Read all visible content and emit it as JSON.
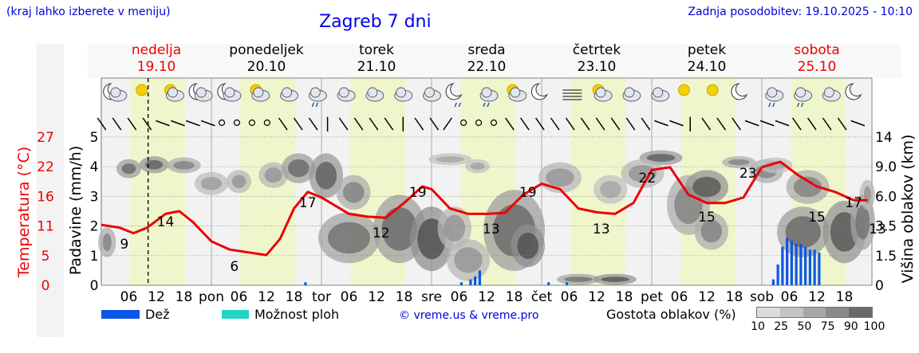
{
  "header": {
    "left_note": "(kraj lahko izberete v meniju)",
    "title": "Zagreb 7 dni",
    "updated": "Zadnja posodobitev: 19.10.2025 - 10:10"
  },
  "days": [
    {
      "name": "nedelja",
      "date": "19.10",
      "color": "#ee0000"
    },
    {
      "name": "ponedeljek",
      "date": "20.10",
      "color": "#000000"
    },
    {
      "name": "torek",
      "date": "21.10",
      "color": "#000000"
    },
    {
      "name": "sreda",
      "date": "22.10",
      "color": "#000000"
    },
    {
      "name": "četrtek",
      "date": "23.10",
      "color": "#000000"
    },
    {
      "name": "petek",
      "date": "24.10",
      "color": "#000000"
    },
    {
      "name": "sobota",
      "date": "25.10",
      "color": "#ee0000"
    }
  ],
  "legend": {
    "rain": "Dež",
    "shower": "Možnost ploh",
    "copyright": "© vreme.us & vreme.pro",
    "cloud_density": "Gostota oblakov (%)",
    "cloud_ticks": [
      "10",
      "25",
      "50",
      "75",
      "90",
      "100"
    ]
  },
  "colors": {
    "temperature": "#ee0000",
    "rain": "#0b57e8",
    "shower": "#23d4c3",
    "daylight": "#f0f6cc",
    "night": "#f2f2f2"
  },
  "chart_data": {
    "type": "line",
    "x_unit": "hours since 2025-10-19 00:00",
    "x_tick_labels": [
      "06",
      "12",
      "18",
      "pon",
      "06",
      "12",
      "18",
      "tor",
      "06",
      "12",
      "18",
      "sre",
      "06",
      "12",
      "18",
      "čet",
      "06",
      "12",
      "18",
      "pet",
      "06",
      "12",
      "18",
      "sob",
      "06",
      "12",
      "18"
    ],
    "current_time_hours": 10.2,
    "left_temperature_axis": {
      "label": "Temperatura (°C)",
      "ticks": [
        "0",
        "5",
        "11",
        "16",
        "22",
        "27"
      ],
      "range": [
        0,
        27
      ]
    },
    "left_precip_axis": {
      "label": "Padavine (mm/h)",
      "ticks": [
        "0",
        "1",
        "2",
        "3",
        "4",
        "5"
      ],
      "range": [
        0,
        5
      ]
    },
    "right_cloud_axis": {
      "label": "Višina oblakov (km)",
      "ticks": [
        "0",
        "1.5",
        "3.5",
        "6.0",
        "9.0",
        "14"
      ]
    },
    "temperature_series": {
      "name": "Temperatura (°C)",
      "x": [
        0,
        4,
        7,
        10,
        14,
        17,
        20,
        24,
        28,
        32,
        36,
        39,
        42,
        45,
        48,
        54,
        58,
        62,
        66,
        70,
        72,
        76,
        80,
        84,
        88,
        92,
        96,
        100,
        104,
        108,
        112,
        116,
        120,
        124,
        128,
        132,
        136,
        140,
        144,
        148,
        152,
        156,
        160,
        164,
        167
      ],
      "y": [
        11,
        10.5,
        9.5,
        10.5,
        13,
        13.5,
        11.5,
        8,
        6.5,
        6,
        5.5,
        8.5,
        14,
        17,
        16,
        13,
        12.5,
        12.3,
        15,
        18,
        17.5,
        14,
        13,
        13,
        13.2,
        16.5,
        18.5,
        17.5,
        14,
        13.3,
        13,
        15,
        21,
        21.5,
        16.5,
        15,
        15,
        16,
        21.5,
        22.5,
        20,
        18,
        17,
        15.5,
        15.5
      ]
    },
    "temperature_labels": [
      {
        "x": 5,
        "value": "9"
      },
      {
        "x": 14,
        "value": "14"
      },
      {
        "x": 29,
        "value": "6"
      },
      {
        "x": 45,
        "value": "17"
      },
      {
        "x": 61,
        "value": "12"
      },
      {
        "x": 69,
        "value": "19"
      },
      {
        "x": 85,
        "value": "13"
      },
      {
        "x": 93,
        "value": "19"
      },
      {
        "x": 109,
        "value": "13"
      },
      {
        "x": 119,
        "value": "22"
      },
      {
        "x": 132,
        "value": "15"
      },
      {
        "x": 141,
        "value": "23"
      },
      {
        "x": 156,
        "value": "15"
      },
      {
        "x": 164,
        "value": "17"
      },
      {
        "x": 175,
        "value": "13"
      }
    ],
    "rain_bars": [
      {
        "x": 44.5,
        "mm": 0.1
      },
      {
        "x": 78.5,
        "mm": 0.1
      },
      {
        "x": 80.5,
        "mm": 0.2
      },
      {
        "x": 81.5,
        "mm": 0.3
      },
      {
        "x": 82.5,
        "mm": 0.5
      },
      {
        "x": 97.5,
        "mm": 0.1
      },
      {
        "x": 101.5,
        "mm": 0.1
      },
      {
        "x": 146.5,
        "mm": 0.2
      },
      {
        "x": 147.5,
        "mm": 0.7
      },
      {
        "x": 148.5,
        "mm": 1.3
      },
      {
        "x": 149.5,
        "mm": 1.6
      },
      {
        "x": 150.5,
        "mm": 1.5
      },
      {
        "x": 151.5,
        "mm": 1.4
      },
      {
        "x": 152.5,
        "mm": 1.4
      },
      {
        "x": 153.5,
        "mm": 1.3
      },
      {
        "x": 154.5,
        "mm": 1.2
      },
      {
        "x": 155.5,
        "mm": 1.2
      },
      {
        "x": 156.5,
        "mm": 1.1
      }
    ],
    "cloud_blobs": [
      {
        "x0": 0,
        "x1": 2.5,
        "km0": 1.5,
        "km1": 3.3,
        "density": 60
      },
      {
        "x0": 4,
        "x1": 8,
        "km0": 8,
        "km1": 10,
        "density": 75
      },
      {
        "x0": 9,
        "x1": 14,
        "km0": 8.5,
        "km1": 10.5,
        "density": 80
      },
      {
        "x0": 15,
        "x1": 21,
        "km0": 8.5,
        "km1": 10.3,
        "density": 60
      },
      {
        "x0": 21,
        "x1": 27,
        "km0": 6.3,
        "km1": 8.3,
        "density": 45
      },
      {
        "x0": 28,
        "x1": 32,
        "km0": 6.5,
        "km1": 8.5,
        "density": 50
      },
      {
        "x0": 35,
        "x1": 40,
        "km0": 7,
        "km1": 9.5,
        "density": 50
      },
      {
        "x0": 40,
        "x1": 46,
        "km0": 7.5,
        "km1": 11,
        "density": 75
      },
      {
        "x0": 46,
        "x1": 52,
        "km0": 6,
        "km1": 11,
        "density": 80
      },
      {
        "x0": 52,
        "x1": 58,
        "km0": 5,
        "km1": 8,
        "density": 60
      },
      {
        "x0": 48,
        "x1": 60,
        "km0": 1.2,
        "km1": 4.5,
        "density": 70
      },
      {
        "x0": 60,
        "x1": 70,
        "km0": 1.2,
        "km1": 6,
        "density": 75
      },
      {
        "x0": 68,
        "x1": 76,
        "km0": 0.8,
        "km1": 5,
        "density": 90
      },
      {
        "x0": 74,
        "x1": 80,
        "km0": 2,
        "km1": 5,
        "density": 50
      },
      {
        "x0": 72,
        "x1": 80,
        "km0": 9.5,
        "km1": 11,
        "density": 40
      },
      {
        "x0": 80,
        "x1": 84,
        "km0": 8.5,
        "km1": 10,
        "density": 40
      },
      {
        "x0": 76,
        "x1": 84,
        "km0": 0.3,
        "km1": 2.5,
        "density": 50
      },
      {
        "x0": 84,
        "x1": 96,
        "km0": 0.8,
        "km1": 6.5,
        "density": 75
      },
      {
        "x0": 90,
        "x1": 96,
        "km0": 1,
        "km1": 3.5,
        "density": 90
      },
      {
        "x0": 96,
        "x1": 104,
        "km0": 6.5,
        "km1": 9.5,
        "density": 50
      },
      {
        "x0": 100,
        "x1": 108,
        "km0": 0.1,
        "km1": 0.5,
        "density": 70
      },
      {
        "x0": 108,
        "x1": 116,
        "km0": 0.1,
        "km1": 0.5,
        "density": 85
      },
      {
        "x0": 108,
        "x1": 114,
        "km0": 5.5,
        "km1": 8,
        "density": 40
      },
      {
        "x0": 118,
        "x1": 126,
        "km0": 9.5,
        "km1": 11.5,
        "density": 80
      },
      {
        "x0": 114,
        "x1": 122,
        "km0": 7,
        "km1": 10,
        "density": 50
      },
      {
        "x0": 124,
        "x1": 132,
        "km0": 3,
        "km1": 8,
        "density": 60
      },
      {
        "x0": 128,
        "x1": 136,
        "km0": 5.5,
        "km1": 8.5,
        "density": 85
      },
      {
        "x0": 130,
        "x1": 136,
        "km0": 2,
        "km1": 4.5,
        "density": 60
      },
      {
        "x0": 136,
        "x1": 142,
        "km0": 9,
        "km1": 10.5,
        "density": 60
      },
      {
        "x0": 142,
        "x1": 148,
        "km0": 7.5,
        "km1": 10,
        "density": 60
      },
      {
        "x0": 144,
        "x1": 150,
        "km0": 8.5,
        "km1": 10.3,
        "density": 40
      },
      {
        "x0": 150,
        "x1": 158,
        "km0": 5.5,
        "km1": 8.5,
        "density": 60
      },
      {
        "x0": 148,
        "x1": 158,
        "km0": 1.5,
        "km1": 5,
        "density": 75
      },
      {
        "x0": 158,
        "x1": 166,
        "km0": 1.2,
        "km1": 5.5,
        "density": 85
      },
      {
        "x0": 164,
        "x1": 168,
        "km0": 2,
        "km1": 6,
        "density": 70
      },
      {
        "x0": 166,
        "x1": 168,
        "km0": 5,
        "km1": 7.5,
        "density": 50
      }
    ],
    "weather_icons": [
      "moon-cloud",
      "sun",
      "sun-cloud",
      "moon-cloud",
      "moon-cloud",
      "sun-cloud",
      "cloud",
      "rain-cloud",
      "cloud",
      "cloud",
      "cloud",
      "cloud",
      "moon-rain",
      "rain-cloud",
      "sun-cloud",
      "moon",
      "fog",
      "sun-cloud",
      "cloud",
      "cloud",
      "sun",
      "sun",
      "moon",
      "rain-cloud",
      "rain-cloud",
      "cloud",
      "moon"
    ],
    "wind_barbs": [
      "ne",
      "ne",
      "ne",
      "ne",
      "e",
      "e",
      "e",
      "e",
      "calm",
      "calm",
      "calm",
      "calm",
      "ne",
      "ne",
      "ne",
      "n",
      "ne",
      "ne",
      "ne",
      "ne",
      "n",
      "ne",
      "ne",
      "nw",
      "calm",
      "calm",
      "calm",
      "ne",
      "ne",
      "ne",
      "ne",
      "ne",
      "ne",
      "ne",
      "ne",
      "ne",
      "ne",
      "e",
      "e",
      "n",
      "ne",
      "ne",
      "ne",
      "e",
      "e",
      "e",
      "ne",
      "ne",
      "ne",
      "ne",
      "e"
    ]
  }
}
